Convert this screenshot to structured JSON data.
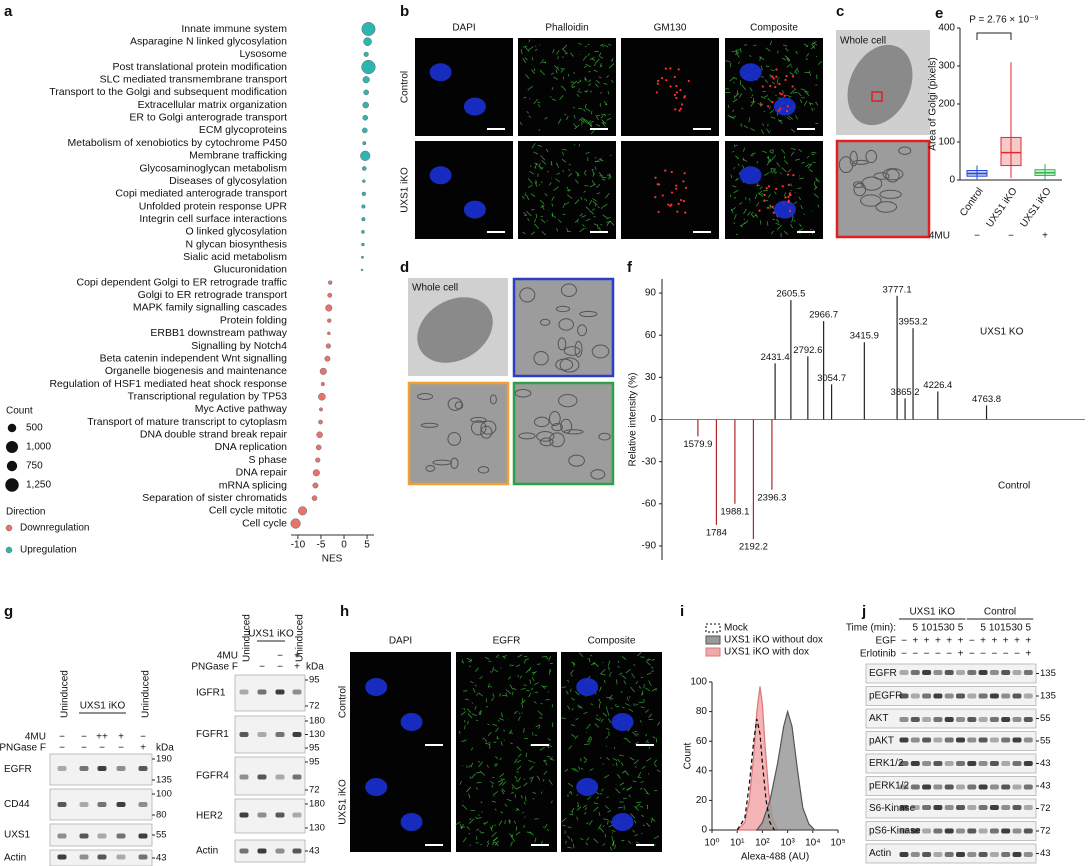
{
  "figure": {
    "letters": [
      "a",
      "b",
      "c",
      "d",
      "e",
      "f",
      "g",
      "h",
      "i",
      "j"
    ],
    "b": {
      "columns": [
        "DAPI",
        "Phalloidin",
        "GM130",
        "Composite"
      ],
      "column_colors": [
        "#2b3fe0",
        "#2e9e2e",
        "#d42020",
        "#111111"
      ],
      "rows": [
        "Control",
        "UXS1 iKO"
      ]
    },
    "c": {
      "label": "Whole cell"
    },
    "d": {
      "label": "Whole cell"
    },
    "g_left": {
      "lane_groups": [
        {
          "label": "Uninduced",
          "lanes": 1
        },
        {
          "label": "UXS1 iKO",
          "lanes": 3
        },
        {
          "label": "Uninduced",
          "lanes": 1
        }
      ],
      "treatments": [
        {
          "name": "4MU",
          "marks": [
            "−",
            "−",
            "++",
            "+",
            "−"
          ]
        },
        {
          "name": "PNGase F",
          "marks": [
            "−",
            "−",
            "−",
            "−",
            "+"
          ]
        }
      ],
      "kda_title": "kDa",
      "blots": [
        {
          "name": "EGFR",
          "kda": [
            190,
            135
          ]
        },
        {
          "name": "CD44",
          "kda": [
            100,
            80
          ]
        },
        {
          "name": "UXS1",
          "kda": [
            55
          ]
        },
        {
          "name": "Actin",
          "kda": [
            43
          ]
        }
      ]
    },
    "g_right": {
      "lane_groups": [
        {
          "label": "Uninduced",
          "lanes": 1
        },
        {
          "label": "UXS1 iKO",
          "lanes": 2
        },
        {
          "label": "Uninduced",
          "lanes": 1
        }
      ],
      "treatments": [
        {
          "name": "4MU",
          "marks": [
            "−",
            "+"
          ]
        },
        {
          "name": "PNGase F",
          "marks": [
            "−",
            "−",
            "+"
          ]
        }
      ],
      "kda_title": "kDa",
      "blots": [
        {
          "name": "IGFR1",
          "kda": [
            95,
            72
          ]
        },
        {
          "name": "FGFR1",
          "kda": [
            180,
            130,
            95
          ]
        },
        {
          "name": "FGFR4",
          "kda": [
            95,
            72
          ]
        },
        {
          "name": "HER2",
          "kda": [
            180,
            130
          ]
        },
        {
          "name": "Actin",
          "kda": [
            43
          ]
        }
      ]
    },
    "h": {
      "columns": [
        "DAPI",
        "EGFR",
        "Composite"
      ],
      "column_colors": [
        "#2b3fe0",
        "#2e9e2e",
        "#111111"
      ],
      "rows": [
        "Control",
        "UXS1 iKO"
      ]
    },
    "j": {
      "lane_groups": [
        {
          "label": "UXS1 iKO",
          "lanes": 6
        },
        {
          "label": "Control",
          "lanes": 6
        }
      ],
      "treatments": [
        {
          "name": "Time (min):",
          "marks": [
            null,
            5,
            10,
            15,
            30,
            5,
            null,
            5,
            10,
            15,
            30,
            5
          ]
        },
        {
          "name": "EGF",
          "marks": [
            "−",
            "+",
            "+",
            "+",
            "+",
            "+",
            "−",
            "+",
            "+",
            "+",
            "+",
            "+"
          ]
        },
        {
          "name": "Erlotinib",
          "marks": [
            "−",
            "−",
            "−",
            "−",
            "−",
            "+",
            "−",
            "−",
            "−",
            "−",
            "−",
            "+"
          ]
        }
      ],
      "blots": [
        {
          "name": "EGFR",
          "kda": [
            135
          ]
        },
        {
          "name": "pEGFR",
          "kda": [
            135
          ]
        },
        {
          "name": "AKT",
          "kda": [
            55
          ]
        },
        {
          "name": "pAKT",
          "kda": [
            55
          ]
        },
        {
          "name": "ERK1/2",
          "kda": [
            43
          ]
        },
        {
          "name": "pERK1/2",
          "kda": [
            43
          ]
        },
        {
          "name": "S6-Kinase",
          "kda": [
            72
          ]
        },
        {
          "name": "pS6-Kinase",
          "kda": [
            72
          ]
        },
        {
          "name": "Actin",
          "kda": [
            43
          ]
        }
      ]
    }
  },
  "chart_data": [
    {
      "type": "dot",
      "categories": [
        "Innate immune system",
        "Asparagine N linked glycosylation",
        "Lysosome",
        "Post translational protein modification",
        "SLC mediated transmembrane transport",
        "Transport to the Golgi and subsequent modification",
        "Extracellular matrix organization",
        "ER to Golgi anterograde transport",
        "ECM glycoproteins",
        "Metabolism of xenobiotics by cytochrome P450",
        "Membrane trafficking",
        "Glycosaminoglycan metabolism",
        "Diseases of glycosylation",
        "Copi mediated anterograde transport",
        "Unfolded protein response UPR",
        "Integrin cell surface interactions",
        "O linked glycosylation",
        "N glycan biosynthesis",
        "Sialic acid metabolism",
        "Glucuronidation",
        "Copi dependent Golgi to ER retrograde traffic",
        "Golgi to ER retrograde transport",
        "MAPK family signalling cascades",
        "Protein folding",
        "ERBB1 downstream pathway",
        "Signalling by Notch4",
        "Beta catenin independent Wnt signalling",
        "Organelle biogenesis and maintenance",
        "Regulation of HSF1 mediated heat shock response",
        "Transcriptional regulation by TP53",
        "Myc Active pathway",
        "Transport of mature transcript to cytoplasm",
        "DNA double strand break repair",
        "DNA replication",
        "S phase",
        "DNA repair",
        "mRNA splicing",
        "Separation of sister chromatids",
        "Cell cycle mitotic",
        "Cell cycle"
      ],
      "values": [
        5.3,
        5.1,
        4.8,
        5.3,
        4.8,
        4.8,
        4.7,
        4.6,
        4.5,
        4.4,
        4.6,
        4.4,
        4.3,
        4.3,
        4.2,
        4.2,
        4.1,
        4.1,
        4.0,
        3.9,
        -3.0,
        -3.1,
        -3.3,
        -3.2,
        -3.3,
        -3.4,
        -3.6,
        -4.5,
        -4.6,
        -4.8,
        -5.0,
        -5.1,
        -5.3,
        -5.5,
        -5.7,
        -6.0,
        -6.2,
        -6.4,
        -9.0,
        -10.5
      ],
      "sizes": [
        1250,
        450,
        150,
        1300,
        300,
        180,
        250,
        180,
        180,
        80,
        650,
        120,
        60,
        100,
        90,
        90,
        70,
        60,
        40,
        25,
        100,
        130,
        300,
        100,
        60,
        150,
        200,
        300,
        90,
        350,
        80,
        120,
        250,
        180,
        150,
        300,
        200,
        180,
        500,
        650
      ],
      "xlabel": "NES",
      "xlim": [
        -11.5,
        6.5
      ],
      "xticks": [
        -10,
        -5,
        0,
        5
      ],
      "size_legend": {
        "title": "Count",
        "values": [
          500,
          {
            "value": 1000,
            "label": "1,000"
          },
          750,
          {
            "value": 1250,
            "label": "1,250"
          }
        ]
      },
      "direction_legend": {
        "title": "Direction",
        "names": [
          "Downregulation",
          "Upregulation"
        ],
        "colors": [
          "#e8736c",
          "#2fb5b0"
        ]
      }
    },
    {
      "type": "box",
      "annotation": "P = 2.76 × 10⁻⁹",
      "ylabel": "Area of Golgi (pixels)",
      "categories": [
        "Control",
        "UXS1 iKO",
        "UXS1 iKO"
      ],
      "colors": [
        "#2747d8",
        "#e02a2a",
        "#2fb84a"
      ],
      "boxes": [
        {
          "min": 2,
          "q1": 10,
          "median": 17,
          "q3": 25,
          "max": 38
        },
        {
          "min": 5,
          "q1": 38,
          "median": 72,
          "q3": 112,
          "max": 310
        },
        {
          "min": 2,
          "q1": 12,
          "median": 19,
          "q3": 27,
          "max": 42
        }
      ],
      "ylim": [
        0,
        400
      ],
      "yticks": [
        0,
        100,
        200,
        300,
        400
      ],
      "treatment": {
        "name": "4MU",
        "marks": [
          "−",
          "−",
          "+"
        ]
      }
    },
    {
      "type": "spectrum",
      "ylabel": "Relative intensity (%)",
      "xlim": [
        1250,
        5850
      ],
      "ylim": [
        -100,
        100
      ],
      "yticks": [
        -90,
        -60,
        -30,
        0,
        30,
        60,
        90
      ],
      "series": [
        {
          "name": "UXS1 KO",
          "color": "#222222",
          "x": [
            2431.4,
            2605.5,
            2792.6,
            2966.7,
            3054.7,
            3415.9,
            3777.1,
            3865.2,
            3953.2,
            4226.4,
            4763.8
          ],
          "values": [
            40,
            85,
            45,
            70,
            25,
            55,
            88,
            15,
            65,
            20,
            10
          ]
        },
        {
          "name": "Control",
          "color": "#b22222",
          "x": [
            1579.9,
            1784.0,
            1988.1,
            2192.2,
            2396.3
          ],
          "values": [
            -12,
            -75,
            -60,
            -85,
            -50
          ]
        }
      ]
    },
    {
      "type": "density",
      "ylabel": "Count",
      "xlabel": "Alexa-488 (AU)",
      "log_x": true,
      "xlim": [
        1,
        100000
      ],
      "xticks": [
        {
          "value": 1,
          "label": "10⁰"
        },
        {
          "value": 10,
          "label": "10¹"
        },
        {
          "value": 100,
          "label": "10²"
        },
        {
          "value": 1000,
          "label": "10³"
        },
        {
          "value": 10000,
          "label": "10⁴"
        },
        {
          "value": 100000,
          "label": "10⁵"
        }
      ],
      "ylim": [
        0,
        100
      ],
      "yticks": [
        0,
        20,
        40,
        60,
        80,
        100
      ],
      "series": [
        {
          "name": "Mock",
          "color": "#000000",
          "fill": "none",
          "dash": true,
          "x": [
            10,
            20,
            30,
            45,
            60,
            80,
            100,
            140,
            200,
            300
          ],
          "values": [
            0,
            8,
            30,
            60,
            75,
            65,
            45,
            20,
            5,
            0
          ]
        },
        {
          "name": "UXS1 iKO without dox",
          "color": "#555555",
          "fill": "#9a9a9a",
          "dash": false,
          "x": [
            60,
            100,
            200,
            400,
            700,
            1000,
            1500,
            2500,
            4000,
            7000,
            12000
          ],
          "values": [
            0,
            5,
            20,
            45,
            70,
            80,
            70,
            40,
            15,
            4,
            0
          ]
        },
        {
          "name": "UXS1 iKO with dox",
          "color": "#d9777a",
          "fill": "#f2a7a9",
          "dash": false,
          "x": [
            10,
            20,
            30,
            45,
            60,
            80,
            100,
            130,
            180,
            250,
            400
          ],
          "values": [
            0,
            5,
            20,
            50,
            80,
            97,
            85,
            55,
            25,
            8,
            0
          ]
        }
      ]
    }
  ]
}
